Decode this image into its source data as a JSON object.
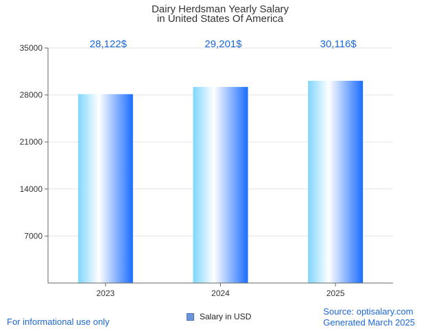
{
  "chart_data": {
    "type": "bar",
    "title_lines": [
      "Dairy Herdsman Yearly Salary",
      "in United States Of America"
    ],
    "categories": [
      "2023",
      "2024",
      "2025"
    ],
    "values": [
      28122,
      29201,
      30116
    ],
    "value_labels": [
      "28,122$",
      "29,201$",
      "30,116$"
    ],
    "ylim": [
      0,
      35000
    ],
    "yticks": [
      7000,
      14000,
      21000,
      28000,
      35000
    ],
    "ytick_labels": [
      "7000",
      "14000",
      "21000",
      "28000",
      "35000"
    ],
    "grid": true,
    "series": [
      {
        "name": "Salary in USD"
      }
    ],
    "legend_position": "bottom-center"
  },
  "colors": {
    "label": "#1a66d6",
    "bar_light": "#ffffff",
    "bar_cyan": "#7fd6ff",
    "bar_blue": "#1a6cff",
    "grid": "#e3e3e3",
    "axis": "#666666"
  },
  "footer": {
    "disclaimer": "For informational use only",
    "source": "Source: optisalary.com",
    "generated": "Generated March 2025"
  }
}
